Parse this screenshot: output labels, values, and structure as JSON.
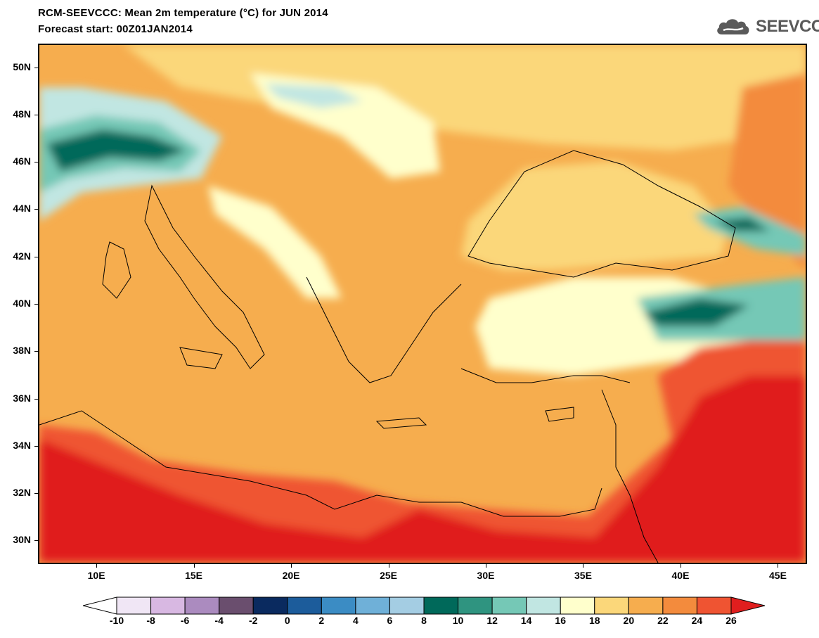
{
  "title": {
    "line1": "RCM-SEEVCCC: Mean 2m temperature (°C) for JUN 2014",
    "line2": "Forecast start: 00Z01JAN2014"
  },
  "logo": {
    "text": "SEEVCCC",
    "icon": "cloud-icon",
    "color": "#5a5a5a"
  },
  "map": {
    "lat_labels": [
      "50N",
      "48N",
      "46N",
      "44N",
      "42N",
      "40N",
      "38N",
      "36N",
      "34N",
      "32N",
      "30N"
    ],
    "lat_values": [
      50,
      48,
      46,
      44,
      42,
      40,
      38,
      36,
      34,
      32,
      30
    ],
    "lon_labels": [
      "10E",
      "15E",
      "20E",
      "25E",
      "30E",
      "35E",
      "40E",
      "45E"
    ],
    "lon_values": [
      10,
      15,
      20,
      25,
      30,
      35,
      40,
      45
    ],
    "lon_range": [
      7,
      46.5
    ],
    "lat_range": [
      29,
      51
    ],
    "border_color": "#000000"
  },
  "colorbar": {
    "labels": [
      "-10",
      "-8",
      "-6",
      "-4",
      "-2",
      "0",
      "2",
      "4",
      "6",
      "8",
      "10",
      "12",
      "14",
      "16",
      "18",
      "20",
      "22",
      "24",
      "26"
    ],
    "colors": [
      "#ffffff",
      "#f0e6f5",
      "#d8b8e2",
      "#ab8bbf",
      "#6a4e6e",
      "#0a2a5f",
      "#1c5c9b",
      "#3b8cc4",
      "#6fb0d8",
      "#a4cde3",
      "#00695a",
      "#2f9480",
      "#75c8b6",
      "#c1e6e2",
      "#ffffcc",
      "#fbd77a",
      "#f6ad4e",
      "#f38b3d",
      "#ef5432",
      "#e01e1e"
    ]
  },
  "legend_colors": {
    "sea_base": "#f6ad4e",
    "desert": "#e01e1e",
    "mountain_cold": "#00695a",
    "land_warm": "#fbd77a"
  }
}
